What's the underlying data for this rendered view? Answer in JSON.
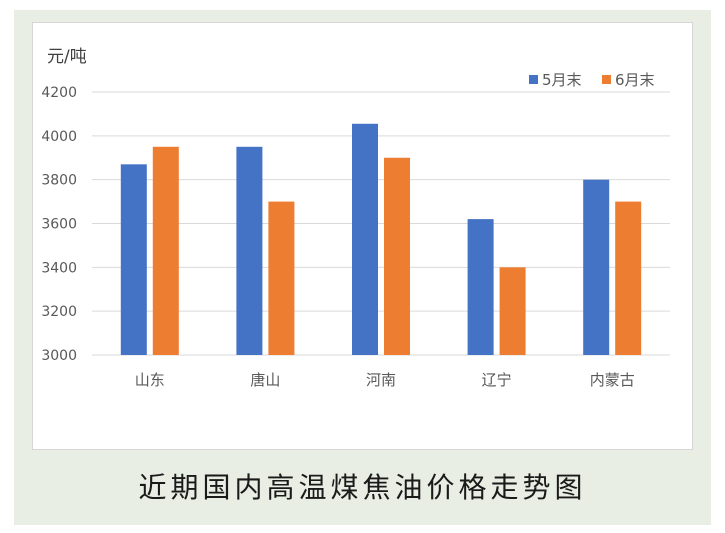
{
  "caption": "近期国内高温煤焦油价格走势图",
  "chart_data": {
    "type": "bar",
    "title": "",
    "ylabel": "元/吨",
    "xlabel": "",
    "categories": [
      "山东",
      "唐山",
      "河南",
      "辽宁",
      "内蒙古"
    ],
    "series": [
      {
        "name": "5月末",
        "color": "#4472c4",
        "values": [
          3870,
          3950,
          4055,
          3620,
          3800
        ]
      },
      {
        "name": "6月末",
        "color": "#ed7d31",
        "values": [
          3950,
          3700,
          3900,
          3400,
          3700
        ]
      }
    ],
    "ylim": [
      3000,
      4200
    ],
    "yticks": [
      3000,
      3200,
      3400,
      3600,
      3800,
      4000,
      4200
    ],
    "grid": true,
    "legend": "top-right"
  }
}
